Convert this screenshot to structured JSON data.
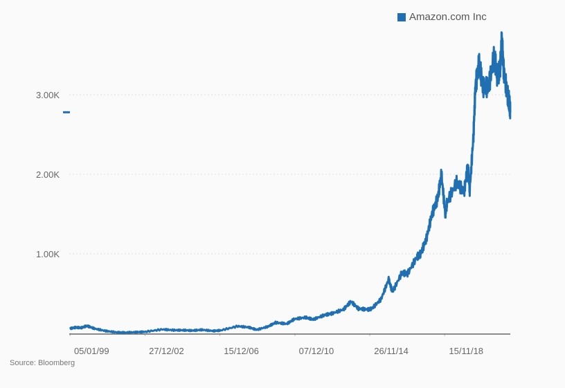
{
  "chart_data": {
    "type": "line",
    "title": "",
    "xlabel": "",
    "ylabel": "",
    "source": "Source: Bloomberg",
    "legend": {
      "entries": [
        "Amazon.com Inc"
      ],
      "placement": "top-right"
    },
    "colors": {
      "series": "#1f6fb2",
      "grid": "#dddddd",
      "axis": "#666666"
    },
    "ylim": [
      0,
      3800
    ],
    "xlim": [
      1999.0,
      2022.35
    ],
    "grid": true,
    "y_ticks": [
      {
        "value": 1000,
        "label": "1.00K"
      },
      {
        "value": 2000,
        "label": "2.00K"
      },
      {
        "value": 3000,
        "label": "3.00K"
      }
    ],
    "x_ticks": [
      {
        "value": 1999.01,
        "label": "05/01/99"
      },
      {
        "value": 2002.98,
        "label": "27/12/02"
      },
      {
        "value": 2006.95,
        "label": "15/12/06"
      },
      {
        "value": 2010.93,
        "label": "07/12/10"
      },
      {
        "value": 2014.9,
        "label": "26/11/14"
      },
      {
        "value": 2018.87,
        "label": "15/11/18"
      }
    ],
    "last_value": 2780,
    "series": [
      {
        "name": "Amazon.com Inc",
        "x": [
          1999.0,
          1999.3,
          1999.6,
          1999.9,
          2000.3,
          2000.9,
          2001.5,
          2001.9,
          2002.5,
          2003.0,
          2003.9,
          2004.5,
          2005.0,
          2005.5,
          2006.0,
          2006.6,
          2007.0,
          2007.9,
          2008.5,
          2008.9,
          2009.5,
          2009.9,
          2010.5,
          2010.9,
          2011.5,
          2011.9,
          2012.5,
          2012.9,
          2013.5,
          2013.9,
          2014.3,
          2014.8,
          2015.0,
          2015.5,
          2015.9,
          2016.1,
          2016.6,
          2016.9,
          2017.4,
          2017.6,
          2017.9,
          2018.2,
          2018.5,
          2018.7,
          2018.9,
          2019.0,
          2019.5,
          2019.9,
          2020.1,
          2020.2,
          2020.4,
          2020.5,
          2020.7,
          2020.9,
          2021.2,
          2021.5,
          2021.65,
          2021.8,
          2021.9,
          2022.0,
          2022.2,
          2022.3,
          2022.35
        ],
        "values": [
          60,
          75,
          70,
          95,
          60,
          30,
          12,
          10,
          15,
          20,
          50,
          40,
          40,
          35,
          45,
          30,
          38,
          90,
          75,
          45,
          85,
          135,
          120,
          180,
          200,
          175,
          230,
          250,
          300,
          400,
          310,
          300,
          310,
          430,
          680,
          520,
          760,
          750,
          960,
          1000,
          1190,
          1500,
          1700,
          2000,
          1500,
          1650,
          1900,
          1780,
          2100,
          1800,
          2500,
          3100,
          3400,
          3100,
          3100,
          3500,
          3250,
          3300,
          3700,
          3300,
          3000,
          2900,
          2780
        ]
      }
    ]
  }
}
